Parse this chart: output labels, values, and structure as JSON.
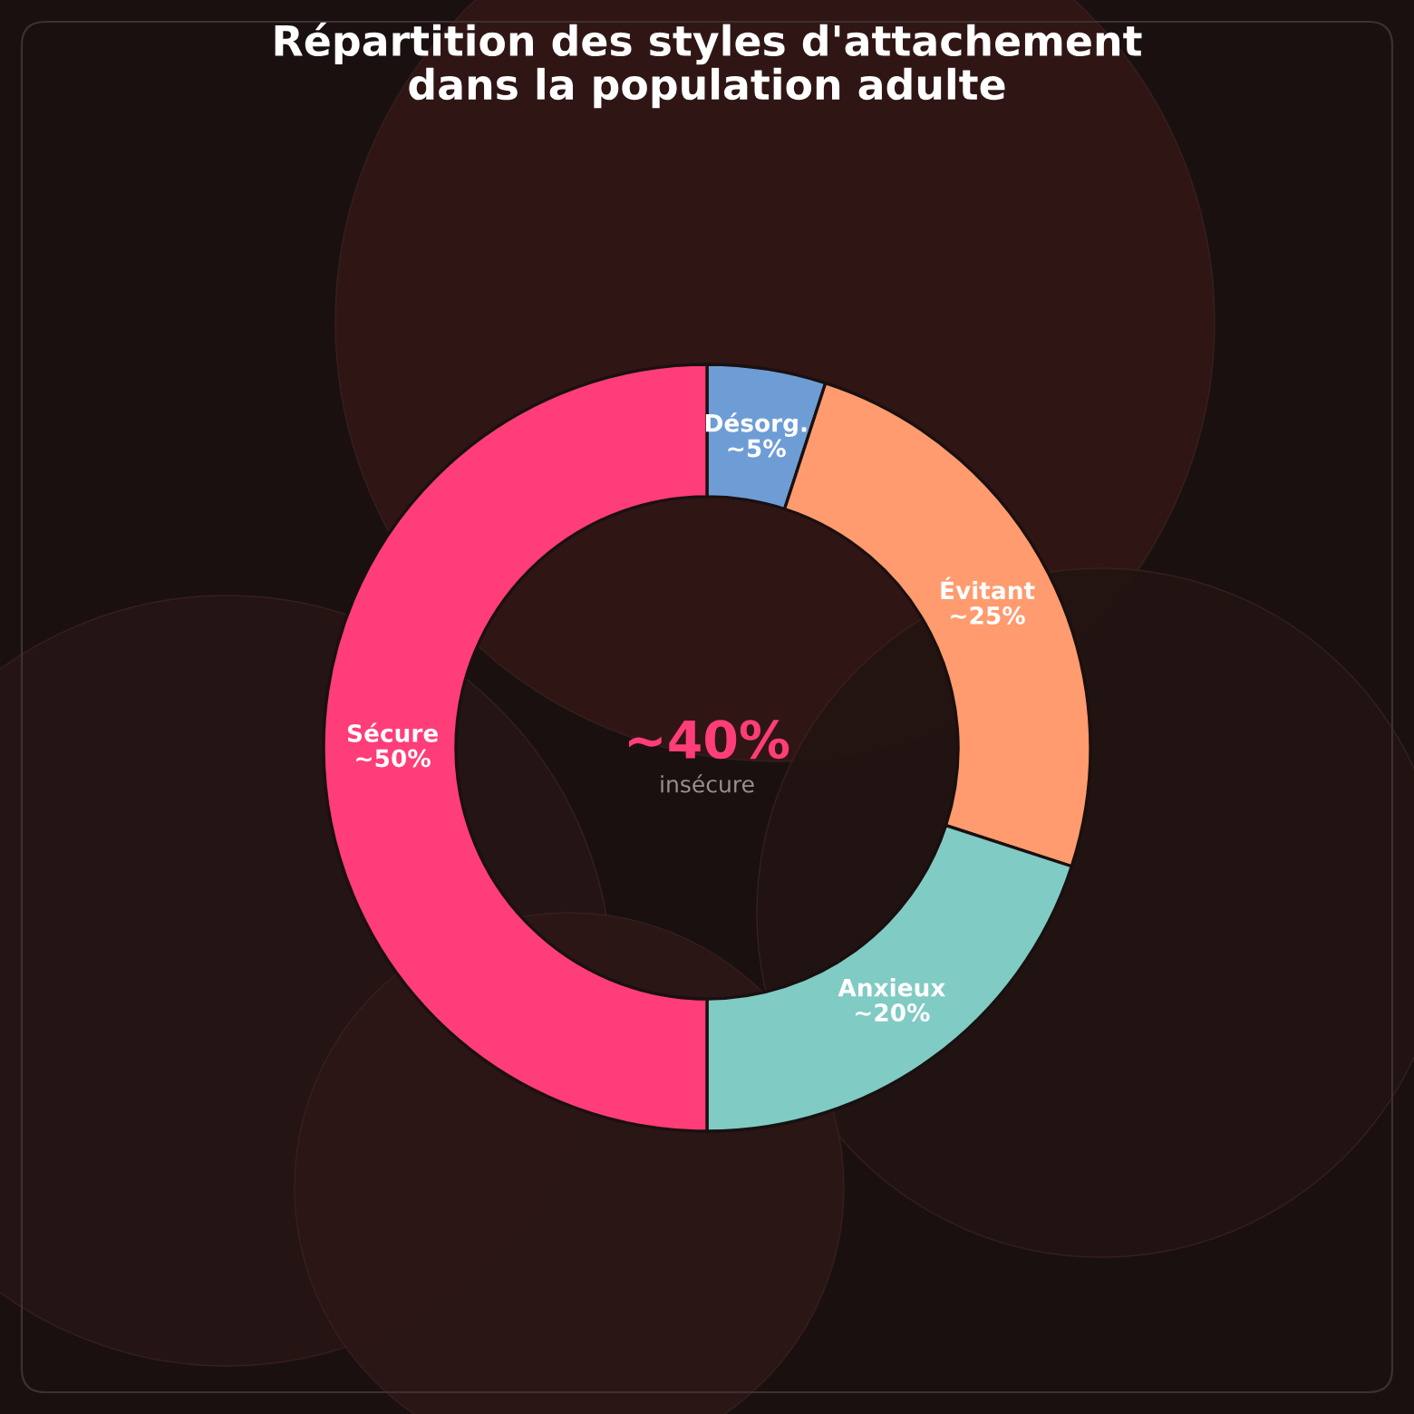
{
  "chart_data": {
    "type": "donut",
    "title": "Répartition des styles d'attachement\ndans la population adulte",
    "categories": [
      "Désorg.",
      "Évitant",
      "Anxieux",
      "Sécure"
    ],
    "values": [
      5,
      25,
      20,
      50
    ],
    "colors": [
      "#6e9dd6",
      "#ff9b6e",
      "#80cbc4",
      "#ff3d78"
    ],
    "value_labels": [
      "~5%",
      "~25%",
      "~20%",
      "~50%"
    ],
    "annotations": [
      "~40%",
      "insécure"
    ]
  }
}
